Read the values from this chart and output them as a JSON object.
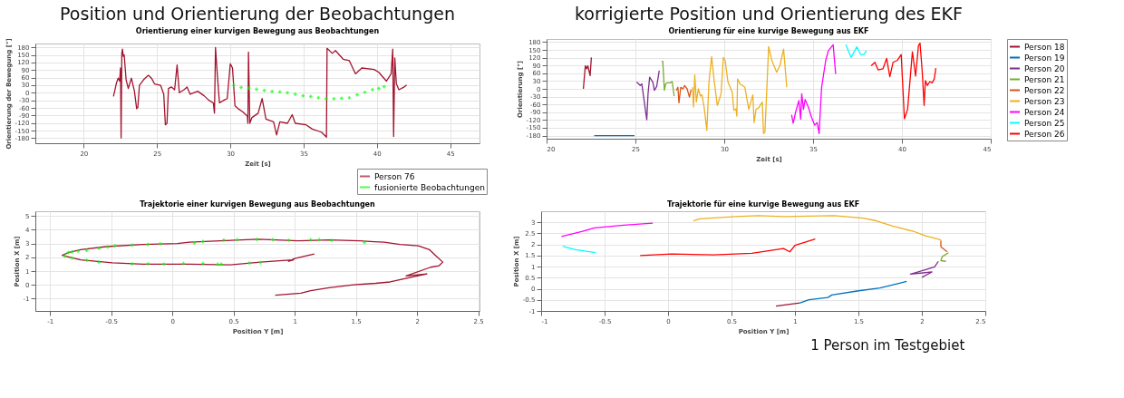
{
  "chart_data": [
    {
      "type": "line",
      "title": "Orientierung einer kurvigen Bewegung aus Beobachtungen",
      "annotations": [
        "Position und Orientierung der Beobachtungen"
      ],
      "xlabel": "Zeit [s]",
      "ylabel": "Orientierung der Bewegung [°]",
      "xlim": [
        16.7,
        47
      ],
      "xticks": [
        20,
        25,
        30,
        35,
        40,
        45
      ],
      "ylim": [
        -200,
        195
      ],
      "yticks": [
        -180,
        -150,
        -120,
        -90,
        -60,
        -30,
        0,
        30,
        60,
        90,
        120,
        150,
        180
      ],
      "grid": true,
      "legend": "bottom right",
      "series": [
        {
          "name": "Person 76",
          "type": "line",
          "color": "#a2142f",
          "x": [
            22.03,
            22.24,
            22.35,
            22.45,
            22.51,
            22.55,
            22.6,
            22.64,
            22.7,
            22.76,
            22.89,
            23.04,
            23.25,
            23.46,
            23.61,
            23.69,
            23.8,
            24.09,
            24.41,
            24.62,
            24.83,
            25.25,
            25.46,
            25.57,
            25.68,
            25.78,
            25.99,
            26.2,
            26.37,
            26.52,
            26.84,
            27.05,
            27.26,
            27.78,
            28.21,
            28.52,
            28.84,
            28.92,
            28.99,
            29.11,
            29.26,
            29.58,
            29.79,
            30.0,
            30.15,
            30.32,
            30.53,
            30.84,
            31.16,
            31.2,
            31.24,
            31.33,
            31.48,
            31.9,
            32.17,
            32.43,
            32.95,
            33.16,
            33.38,
            33.9,
            34.22,
            34.43,
            35.17,
            35.59,
            36.22,
            36.56,
            36.6,
            36.96,
            37.17,
            37.7,
            38.12,
            38.54,
            38.97,
            39.81,
            40.13,
            40.65,
            40.97,
            41.08,
            41.14,
            41.22,
            41.33,
            41.5,
            41.81,
            42.03
          ],
          "values": [
            -15,
            40,
            58,
            46,
            98,
            -179,
            156,
            173,
            144,
            150,
            52,
            17,
            58,
            6,
            -63,
            -58,
            29,
            52,
            69,
            58,
            35,
            29,
            -6,
            -127,
            -121,
            17,
            23,
            12,
            110,
            0,
            12,
            23,
            -6,
            6,
            -12,
            -29,
            -40,
            -81,
            179,
            75,
            -40,
            -29,
            -23,
            115,
            98,
            -52,
            -63,
            -75,
            -92,
            -121,
            161,
            -121,
            -98,
            -81,
            -23,
            -104,
            -115,
            -167,
            -115,
            -121,
            -87,
            -121,
            -127,
            -144,
            -156,
            -176,
            176,
            156,
            167,
            133,
            127,
            75,
            98,
            92,
            81,
            46,
            75,
            173,
            -173,
            138,
            35,
            12,
            21,
            31
          ]
        },
        {
          "name": "fusionierte Beobachtungen",
          "type": "scatter",
          "marker": "cross",
          "color": "#00ff00",
          "x": [
            30.23,
            30.74,
            31.27,
            31.79,
            32.32,
            32.85,
            33.38,
            33.9,
            34.43,
            34.96,
            35.49,
            36.01,
            36.54,
            37.07,
            37.59,
            38.12,
            38.65,
            39.18,
            39.7,
            40.13,
            40.49
          ],
          "values": [
            29,
            21,
            18,
            14,
            9,
            5,
            3,
            0,
            -6,
            -12,
            -15,
            -20,
            -23,
            -24,
            -22,
            -20,
            -8,
            2,
            12,
            17,
            24
          ]
        }
      ]
    },
    {
      "type": "line",
      "title": "Orientierung für eine kurvige Bewegung aus EKF",
      "annotations": [
        "korrigierte Position und Orientierung des EKF"
      ],
      "xlabel": "Zeit [s]",
      "ylabel": "Orientierung [°]",
      "xlim": [
        20,
        45
      ],
      "xticks": [
        20,
        25,
        30,
        35,
        40,
        45
      ],
      "ylim": [
        -192,
        192
      ],
      "yticks": [
        -180,
        -150,
        -120,
        -90,
        -60,
        -30,
        0,
        30,
        60,
        90,
        120,
        150,
        180
      ],
      "grid": true,
      "legend": "right",
      "series": [
        {
          "name": "Person 18",
          "color": "#a2142f",
          "x": [
            22.07,
            22.18,
            22.25,
            22.32,
            22.45,
            22.52
          ],
          "values": [
            0,
            89,
            77,
            89,
            51,
            121
          ]
        },
        {
          "name": "Person 19",
          "color": "#0072bd",
          "x": [
            22.68,
            24.95
          ],
          "values": [
            -180,
            -180
          ]
        },
        {
          "name": "Person 20",
          "color": "#7e2f8e",
          "x": [
            25.07,
            25.27,
            25.36,
            25.64,
            25.71,
            25.8,
            25.98,
            26.07,
            26.2,
            26.34
          ],
          "values": [
            26,
            13,
            19,
            -119,
            -19,
            45,
            26,
            -6,
            10,
            70
          ]
        },
        {
          "name": "Person 21",
          "color": "#77ac30",
          "x": [
            26.48,
            26.54,
            26.63,
            26.7,
            26.79,
            26.96,
            27.07,
            27.18
          ],
          "values": [
            106,
            106,
            -6,
            19,
            23,
            23,
            28,
            -28
          ]
        },
        {
          "name": "Person 22",
          "color": "#d95319",
          "x": [
            27.3,
            27.39,
            27.45,
            27.55,
            27.68,
            27.77,
            27.91,
            28.04,
            28.13
          ],
          "values": [
            -6,
            6,
            -54,
            6,
            0,
            13,
            0,
            -32,
            -4
          ]
        },
        {
          "name": "Person 23",
          "color": "#edb120",
          "x": [
            28.21,
            28.27,
            28.34,
            28.43,
            28.54,
            28.66,
            28.75,
            28.88,
            29.02,
            29.14,
            29.29,
            29.41,
            29.61,
            29.82,
            29.95,
            30.05,
            30.21,
            30.45,
            30.54,
            30.66,
            30.71,
            30.75,
            30.89,
            31.16,
            31.38,
            31.61,
            31.68,
            31.79,
            31.93,
            32.14,
            32.21,
            32.29,
            32.5,
            32.68,
            32.95,
            33.13,
            33.34,
            33.52
          ],
          "values": [
            6,
            -70,
            54,
            -51,
            0,
            -28,
            -23,
            -77,
            -160,
            26,
            124,
            45,
            -64,
            -19,
            121,
            109,
            26,
            -13,
            -83,
            -77,
            -105,
            38,
            19,
            6,
            -79,
            -23,
            -130,
            -79,
            -74,
            -51,
            -172,
            -166,
            163,
            109,
            64,
            89,
            153,
            6
          ]
        },
        {
          "name": "Person 24",
          "color": "#ff00ff",
          "x": [
            33.79,
            33.88,
            34.02,
            34.2,
            34.3,
            34.36,
            34.46,
            34.55,
            34.73,
            34.91,
            35.09,
            35.23,
            35.34,
            35.48,
            35.71,
            35.86,
            36.13,
            36.27
          ],
          "values": [
            -100,
            -132,
            -89,
            -45,
            -117,
            -19,
            -79,
            -41,
            -70,
            -109,
            -140,
            -130,
            -172,
            6,
            109,
            147,
            170,
            57
          ]
        },
        {
          "name": "Person 25",
          "color": "#00ffff",
          "x": [
            36.84,
            37.14,
            37.46,
            37.68,
            37.86,
            38.0
          ],
          "values": [
            170,
            121,
            162,
            132,
            132,
            147
          ]
        },
        {
          "name": "Person 26",
          "color": "#ff0000",
          "x": [
            38.27,
            38.48,
            38.66,
            38.93,
            39.14,
            39.32,
            39.5,
            39.73,
            39.96,
            40.14,
            40.32,
            40.59,
            40.77,
            40.93,
            41.02,
            41.14,
            41.25,
            41.32,
            41.43,
            41.57,
            41.7,
            41.82,
            41.91
          ],
          "values": [
            89,
            102,
            73,
            77,
            117,
            47,
            102,
            109,
            132,
            -115,
            -79,
            143,
            49,
            166,
            176,
            70,
            -64,
            32,
            13,
            28,
            23,
            38,
            80
          ]
        }
      ]
    },
    {
      "type": "line",
      "title": "Trajektorie einer kurvigen Bewegung aus Beobachtungen",
      "xlabel": "Position Y [m]",
      "ylabel": "Position X [m]",
      "xlim": [
        -1.12,
        2.51
      ],
      "xticks": [
        -1,
        -0.5,
        0,
        0.5,
        1,
        1.5,
        2,
        2.5
      ],
      "ylim": [
        -1.9,
        5.35
      ],
      "yticks": [
        -1,
        0,
        1,
        2,
        3,
        4,
        5
      ],
      "grid": true,
      "series": [
        {
          "type": "line",
          "color": "#a2142f",
          "x": [
            0.84,
            1.05,
            1.13,
            1.28,
            1.48,
            1.66,
            1.78,
            1.89,
            2.08,
            1.91,
            2.11,
            2.18,
            2.21,
            2.15,
            2.1,
            2.01,
            1.86,
            1.73,
            1.65,
            1.53,
            1.28,
            1.03,
            0.7,
            0.39,
            0.14,
            0.04,
            -0.24,
            -0.54,
            -0.75,
            -0.85,
            -0.9,
            -0.85,
            -0.75,
            -0.49,
            -0.24,
            0.14,
            0.47,
            0.72,
            0.9,
            0.99,
            0.95,
            1.0,
            1.16
          ],
          "values": [
            -0.75,
            -0.6,
            -0.43,
            -0.21,
            0,
            0.11,
            0.21,
            0.43,
            0.79,
            0.64,
            1.28,
            1.39,
            1.65,
            2.14,
            2.56,
            2.84,
            2.93,
            3.1,
            3.14,
            3.2,
            3.27,
            3.2,
            3.31,
            3.2,
            3.1,
            3.0,
            2.93,
            2.78,
            2.56,
            2.35,
            2.14,
            2.03,
            1.82,
            1.6,
            1.5,
            1.5,
            1.45,
            1.65,
            1.77,
            1.82,
            1.71,
            1.92,
            2.24
          ]
        },
        {
          "type": "scatter",
          "marker": "cross",
          "color": "#00ff00",
          "x": [
            -0.85,
            -0.82,
            -0.77,
            -0.7,
            -0.6,
            -0.53,
            -0.47,
            -0.33,
            -0.2,
            -0.1,
            0.18,
            0.25,
            0.42,
            0.53,
            0.69,
            0.82,
            0.95,
            1.13,
            1.2,
            1.3,
            1.57,
            -0.88,
            -0.82,
            -0.7,
            -0.6,
            -0.33,
            -0.2,
            -0.07,
            0.09,
            0.25,
            0.37,
            0.4,
            0.63,
            0.72
          ],
          "values": [
            2.35,
            2.4,
            2.45,
            2.5,
            2.65,
            2.75,
            2.83,
            2.88,
            2.93,
            2.98,
            3.05,
            3.15,
            3.25,
            3.28,
            3.3,
            3.28,
            3.25,
            3.28,
            3.28,
            3.23,
            3.08,
            2.1,
            1.95,
            1.78,
            1.65,
            1.52,
            1.52,
            1.5,
            1.55,
            1.55,
            1.5,
            1.5,
            1.58,
            1.62
          ]
        }
      ]
    },
    {
      "type": "line",
      "title": "Trajektorie für eine kurvige Bewegung aus EKF",
      "annotations": [
        "1 Person im Testgebiet"
      ],
      "xlabel": "Position Y [m]",
      "ylabel": "Position X [m]",
      "xlim": [
        -1,
        2.5
      ],
      "xticks": [
        -1,
        -0.5,
        0,
        0.5,
        1,
        1.5,
        2,
        2.5
      ],
      "ylim": [
        -1,
        3.5
      ],
      "yticks": [
        -1,
        -0.5,
        0,
        0.5,
        1,
        1.5,
        2,
        2.5,
        3
      ],
      "grid": true,
      "series": [
        {
          "color": "#a2142f",
          "x": [
            0.85,
            1.04
          ],
          "values": [
            -0.78,
            -0.64
          ]
        },
        {
          "color": "#0072bd",
          "x": [
            1.04,
            1.11,
            1.26,
            1.29,
            1.49,
            1.67,
            1.81,
            1.88
          ],
          "values": [
            -0.64,
            -0.49,
            -0.39,
            -0.28,
            -0.1,
            0.04,
            0.23,
            0.33
          ]
        },
        {
          "color": "#7e2f8e",
          "x": [
            2.13,
            2.1,
            2.02,
            1.91,
            2.08,
            2.0
          ],
          "values": [
            1.24,
            0.99,
            0.85,
            0.66,
            0.76,
            0.52
          ]
        },
        {
          "color": "#77ac30",
          "x": [
            2.21,
            2.16,
            2.15,
            2.19
          ],
          "values": [
            1.63,
            1.45,
            1.27,
            1.24
          ]
        },
        {
          "color": "#d95319",
          "x": [
            2.15,
            2.15,
            2.2
          ],
          "values": [
            2.18,
            1.89,
            1.67
          ]
        },
        {
          "color": "#edb120",
          "x": [
            0.2,
            0.25,
            0.53,
            0.71,
            0.91,
            1.31,
            1.54,
            1.64,
            1.77,
            1.94,
            2.03,
            2.15
          ],
          "values": [
            3.07,
            3.16,
            3.26,
            3.3,
            3.26,
            3.3,
            3.19,
            3.07,
            2.83,
            2.58,
            2.39,
            2.21
          ]
        },
        {
          "color": "#ff00ff",
          "x": [
            -0.84,
            -0.68,
            -0.58,
            -0.35,
            -0.12
          ],
          "values": [
            2.36,
            2.58,
            2.75,
            2.87,
            2.96
          ]
        },
        {
          "color": "#00ffff",
          "x": [
            -0.83,
            -0.73,
            -0.57
          ],
          "values": [
            1.92,
            1.77,
            1.63
          ]
        },
        {
          "color": "#ff0000",
          "x": [
            -0.22,
            0.03,
            0.36,
            0.66,
            0.91,
            0.96,
            1.0,
            1.16
          ],
          "values": [
            1.5,
            1.57,
            1.53,
            1.6,
            1.82,
            1.67,
            1.96,
            2.25
          ]
        }
      ]
    }
  ]
}
